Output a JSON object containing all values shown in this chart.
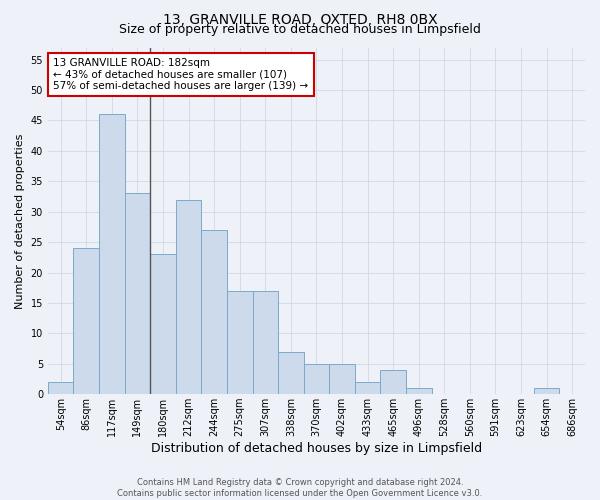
{
  "title1": "13, GRANVILLE ROAD, OXTED, RH8 0BX",
  "title2": "Size of property relative to detached houses in Limpsfield",
  "xlabel": "Distribution of detached houses by size in Limpsfield",
  "ylabel": "Number of detached properties",
  "bar_labels": [
    "54sqm",
    "86sqm",
    "117sqm",
    "149sqm",
    "180sqm",
    "212sqm",
    "244sqm",
    "275sqm",
    "307sqm",
    "338sqm",
    "370sqm",
    "402sqm",
    "433sqm",
    "465sqm",
    "496sqm",
    "528sqm",
    "560sqm",
    "591sqm",
    "623sqm",
    "654sqm",
    "686sqm"
  ],
  "bar_values": [
    2,
    24,
    46,
    33,
    23,
    32,
    27,
    17,
    17,
    7,
    5,
    5,
    2,
    4,
    1,
    0,
    0,
    0,
    0,
    1,
    0
  ],
  "bar_color": "#ccdaeb",
  "bar_edge_color": "#7aaacb",
  "highlight_bar_index": 4,
  "highlight_line_color": "#555555",
  "annotation_line1": "13 GRANVILLE ROAD: 182sqm",
  "annotation_line2": "← 43% of detached houses are smaller (107)",
  "annotation_line3": "57% of semi-detached houses are larger (139) →",
  "annotation_box_color": "#ffffff",
  "annotation_box_edge_color": "#cc0000",
  "ylim": [
    0,
    57
  ],
  "yticks": [
    0,
    5,
    10,
    15,
    20,
    25,
    30,
    35,
    40,
    45,
    50,
    55
  ],
  "grid_color": "#d0d8e8",
  "background_color": "#eef2f8",
  "plot_bg_color": "#eef2f8",
  "footer_text": "Contains HM Land Registry data © Crown copyright and database right 2024.\nContains public sector information licensed under the Open Government Licence v3.0.",
  "title_fontsize": 10,
  "subtitle_fontsize": 9,
  "xlabel_fontsize": 9,
  "ylabel_fontsize": 8,
  "tick_fontsize": 7,
  "annotation_fontsize": 7.5,
  "footer_fontsize": 6
}
